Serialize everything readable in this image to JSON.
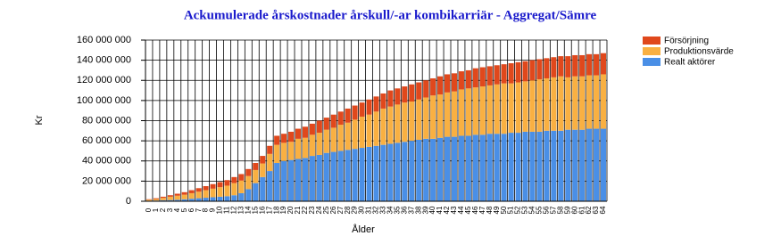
{
  "chart_data": {
    "type": "stacked_bar",
    "title": "Ackumulerade årskostnader årskull/-ar kombikarriär - Aggregat/Sämre",
    "x_label": "Ålder",
    "y_label": "Kr",
    "categories": [
      "0",
      "1",
      "2",
      "3",
      "4",
      "5",
      "6",
      "7",
      "8",
      "9",
      "10",
      "11",
      "12",
      "13",
      "14",
      "15",
      "16",
      "17",
      "18",
      "19",
      "20",
      "21",
      "22",
      "23",
      "24",
      "25",
      "26",
      "27",
      "28",
      "29",
      "30",
      "31",
      "32",
      "33",
      "34",
      "35",
      "36",
      "37",
      "38",
      "39",
      "40",
      "41",
      "42",
      "43",
      "44",
      "45",
      "46",
      "47",
      "48",
      "49",
      "50",
      "51",
      "52",
      "53",
      "54",
      "55",
      "56",
      "57",
      "58",
      "59",
      "60",
      "61",
      "62",
      "63",
      "64"
    ],
    "series": [
      {
        "name": "Realt aktörer",
        "color": "#4a8fe6",
        "values": [
          500000,
          700000,
          1000000,
          1200000,
          1500000,
          2000000,
          2500000,
          3000000,
          3500000,
          4000000,
          4500000,
          5000000,
          6000000,
          8000000,
          12000000,
          18000000,
          24000000,
          30000000,
          38000000,
          40000000,
          41000000,
          42000000,
          43000000,
          45000000,
          46000000,
          48000000,
          49000000,
          50000000,
          51000000,
          52000000,
          53000000,
          54000000,
          55000000,
          56000000,
          57000000,
          58000000,
          59000000,
          60000000,
          61000000,
          62000000,
          62000000,
          63000000,
          64000000,
          64000000,
          65000000,
          65000000,
          66000000,
          66000000,
          67000000,
          67000000,
          67000000,
          68000000,
          68000000,
          69000000,
          69000000,
          69000000,
          70000000,
          70000000,
          70000000,
          71000000,
          71000000,
          71000000,
          72000000,
          72000000,
          72000000
        ]
      },
      {
        "name": "Produktionsvärde",
        "color": "#f9b042",
        "values": [
          1000000,
          1500000,
          2300000,
          3300000,
          4000000,
          4500000,
          5500000,
          6500000,
          7500000,
          8500000,
          9500000,
          10500000,
          12000000,
          12500000,
          13000000,
          13000000,
          13500000,
          17000000,
          18000000,
          18000000,
          18000000,
          20000000,
          20000000,
          21000000,
          22000000,
          23000000,
          24000000,
          26000000,
          27000000,
          29000000,
          31000000,
          32000000,
          34000000,
          36000000,
          37000000,
          38000000,
          39000000,
          39000000,
          40000000,
          41000000,
          43000000,
          43000000,
          44000000,
          45000000,
          46000000,
          47000000,
          47000000,
          48000000,
          48000000,
          49000000,
          50000000,
          49000000,
          50000000,
          50000000,
          51000000,
          52000000,
          52000000,
          53000000,
          54000000,
          52000000,
          53000000,
          53000000,
          53000000,
          53000000,
          54000000
        ]
      },
      {
        "name": "Försörjning",
        "color": "#e0481c",
        "values": [
          500000,
          800000,
          1200000,
          1500000,
          2000000,
          2500000,
          3000000,
          3500000,
          4000000,
          4500000,
          5000000,
          5500000,
          6000000,
          6500000,
          7000000,
          7000000,
          7500000,
          8000000,
          9000000,
          9000000,
          10000000,
          10000000,
          11000000,
          11000000,
          12000000,
          12000000,
          13000000,
          13000000,
          14000000,
          14000000,
          14000000,
          15000000,
          15000000,
          15000000,
          16000000,
          16000000,
          16000000,
          17000000,
          17000000,
          17000000,
          17000000,
          18000000,
          18000000,
          18000000,
          18000000,
          18000000,
          19000000,
          19000000,
          19000000,
          19000000,
          19000000,
          20000000,
          20000000,
          20000000,
          20000000,
          20000000,
          20000000,
          20000000,
          20000000,
          21000000,
          21000000,
          21000000,
          21000000,
          21000000,
          21000000
        ]
      }
    ],
    "ylim": [
      0,
      160000000
    ],
    "yticks": [
      {
        "value": 0,
        "label": "0"
      },
      {
        "value": 20000000,
        "label": "20 000 000"
      },
      {
        "value": 40000000,
        "label": "40 000 000"
      },
      {
        "value": 60000000,
        "label": "60 000 000"
      },
      {
        "value": 80000000,
        "label": "80 000 000"
      },
      {
        "value": 100000000,
        "label": "100 000 000"
      },
      {
        "value": 120000000,
        "label": "120 000 000"
      },
      {
        "value": 140000000,
        "label": "140 000 000"
      },
      {
        "value": 160000000,
        "label": "160 000 000"
      }
    ],
    "grid": true,
    "legend": "top-right"
  }
}
